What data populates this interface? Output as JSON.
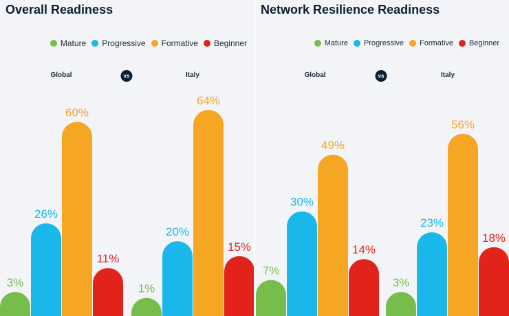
{
  "colors": {
    "Mature": "#76bd4b",
    "Progressive": "#1ab7ea",
    "Formative": "#f5a623",
    "Beginner": "#e2231a"
  },
  "chart_data": [
    {
      "type": "bar",
      "title": "Overall Readiness",
      "legend": [
        "Mature",
        "Progressive",
        "Formative",
        "Beginner"
      ],
      "legend_position": "top-right",
      "comparison_label": "vs",
      "groups": [
        {
          "name": "Global",
          "values": [
            3,
            26,
            60,
            11
          ],
          "labels": [
            "3%",
            "26%",
            "60%",
            "11%"
          ]
        },
        {
          "name": "Italy",
          "values": [
            1,
            20,
            64,
            15
          ],
          "labels": [
            "1%",
            "20%",
            "64%",
            "15%"
          ]
        }
      ],
      "ylim": [
        0,
        70
      ],
      "grid": false
    },
    {
      "type": "bar",
      "title": "Network Resilience Readiness",
      "legend": [
        "Mature",
        "Progressive",
        "Formative",
        "Beginner"
      ],
      "legend_position": "top-right",
      "comparison_label": "vs",
      "groups": [
        {
          "name": "Global",
          "values": [
            7,
            30,
            49,
            14
          ],
          "labels": [
            "7%",
            "30%",
            "49%",
            "14%"
          ]
        },
        {
          "name": "Italy",
          "values": [
            3,
            23,
            56,
            18
          ],
          "labels": [
            "3%",
            "23%",
            "56%",
            "18%"
          ]
        }
      ],
      "ylim": [
        0,
        70
      ],
      "grid": false
    }
  ]
}
